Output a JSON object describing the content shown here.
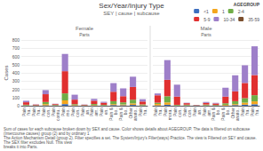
{
  "chart_data": {
    "type": "bar",
    "title": "Sex/Year/Injury Type",
    "subtitle": "SEY | cause | subcause",
    "ylabel": "Cases",
    "legend_title": "AGEGROUP",
    "legend": "upper right",
    "stacked": true,
    "grid": true,
    "ylim": [
      0,
      800
    ],
    "yticks": [
      0,
      100,
      200,
      300,
      400,
      500,
      600,
      700,
      800
    ],
    "annotations": [
      "Sum of cases for each subcause broken down by SEX and cause. Color shows details about AGEGROUP. The data is filtered on subcause (Intercourse causes) group (2) and by ordinary 1\nThe Action Mechanism Detail (group 2). Filter specifies a set. The System/Injury's Filter(ways) Practice. The view is Filtered on SEY and cause. The SEX filter excludes Null. This view\nbreaks it into Parts."
    ],
    "panels": [
      {
        "title": "Female",
        "subtitle": "Parts",
        "categories": [
          "Pain\nfra..",
          "Pain\nfra..",
          "Pain\ncon..",
          "Pain\ncontu..",
          "Pain\nmo..",
          "Pain\ncon..",
          "Pain\nan..",
          "Pain\nam..",
          "Pain\nen..",
          "Pain &\nbo..",
          "Pain &\nbo..",
          "Other\nanato..",
          "Pain\nfra.."
        ],
        "series": [
          {
            "name": "<1",
            "color": "#3c6ebf",
            "values": [
              2,
              1,
              5,
              2,
              20,
              3,
              1,
              3,
              2,
              8,
              6,
              10,
              2
            ]
          },
          {
            "name": "1",
            "color": "#f4a61c",
            "values": [
              4,
              2,
              15,
              3,
              45,
              6,
              2,
              6,
              3,
              12,
              10,
              18,
              4
            ]
          },
          {
            "name": "2-4",
            "color": "#70ad47",
            "values": [
              6,
              3,
              25,
              5,
              85,
              10,
              3,
              12,
              6,
              35,
              25,
              45,
              10
            ]
          },
          {
            "name": "5-9",
            "color": "#e03030",
            "values": [
              30,
              8,
              95,
              10,
              270,
              55,
              6,
              40,
              25,
              115,
              75,
              155,
              35
            ]
          },
          {
            "name": "10-34",
            "color": "#9e7fc9",
            "values": [
              18,
              3,
              50,
              4,
              210,
              60,
              3,
              22,
              12,
              105,
              95,
              125,
              28
            ]
          },
          {
            "name": "35-59",
            "color": "#7b4f2e",
            "values": [
              0,
              0,
              0,
              0,
              0,
              0,
              0,
              0,
              0,
              0,
              0,
              0,
              0
            ]
          }
        ]
      },
      {
        "title": "Male",
        "subtitle": "Parts",
        "tick_labels": "x",
        "categories": [
          "Pain\nfra..",
          "Pain\nmora..",
          "Pain\ncon..",
          "Pain\ncon..",
          "Pain\nan..",
          "Pain\nam..",
          "Pain &\nbo..",
          "Pain &\nbo..",
          "Other\nanato..",
          "Pain\nfra..",
          "Pain\nfra.."
        ],
        "series": [
          {
            "name": "<1",
            "color": "#3c6ebf",
            "values": [
              4,
              12,
              1,
              2,
              1,
              2,
              1,
              4,
              8,
              12,
              18
            ]
          },
          {
            "name": "1",
            "color": "#f4a61c",
            "values": [
              18,
              28,
              4,
              4,
              1,
              4,
              2,
              8,
              12,
              25,
              35
            ]
          },
          {
            "name": "2-4",
            "color": "#70ad47",
            "values": [
              15,
              75,
              6,
              7,
              2,
              8,
              6,
              18,
              35,
              55,
              75
            ]
          },
          {
            "name": "5-9",
            "color": "#e03030",
            "values": [
              90,
              200,
              100,
              18,
              4,
              20,
              18,
              80,
              120,
              185,
              245
            ]
          },
          {
            "name": "10-34",
            "color": "#9e7fc9",
            "values": [
              22,
              240,
              145,
              5,
              2,
              12,
              8,
              110,
              195,
              215,
              350
            ]
          },
          {
            "name": "35-59",
            "color": "#7b4f2e",
            "values": [
              0,
              0,
              0,
              0,
              0,
              0,
              0,
              0,
              0,
              0,
              0
            ]
          }
        ]
      }
    ]
  }
}
